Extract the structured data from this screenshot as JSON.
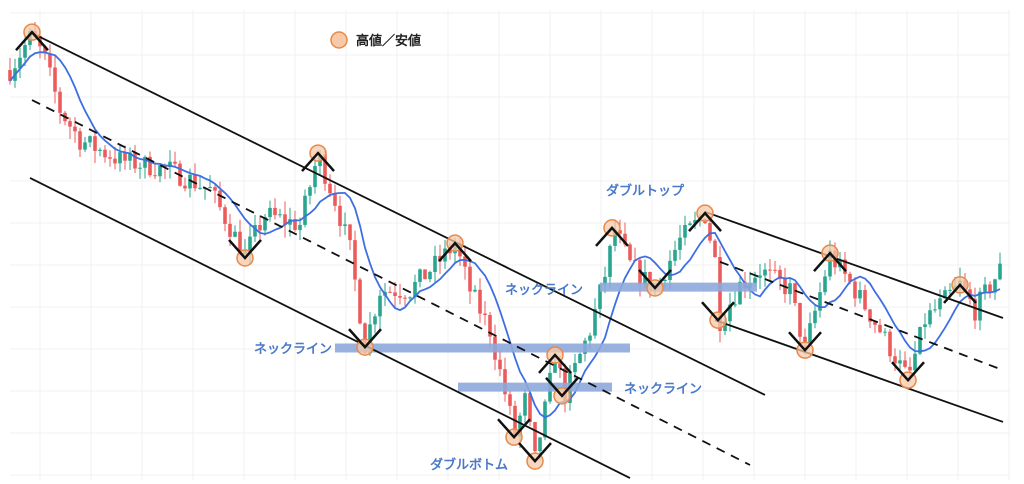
{
  "chart_data": {
    "type": "candlestick",
    "title": "",
    "xlabel": "",
    "ylabel": "",
    "xlim": [
      0,
      199
    ],
    "ylim": [
      0,
      100
    ],
    "grid": true,
    "legend": {
      "placement": "top-center",
      "label": "高値／安値",
      "marker_color": "#f6c9a8",
      "marker_edge": "#e8894a"
    },
    "colors": {
      "up": "#2aa58f",
      "down": "#ec5b5b",
      "moving_average": "#3d6fe3",
      "trendline": "#111111",
      "neckline": "#8ea9dc"
    },
    "price_path": [
      [
        0,
        90.8
      ],
      [
        4.4,
        98.9
      ],
      [
        7,
        93.1
      ],
      [
        10,
        81.6
      ],
      [
        14,
        74.7
      ],
      [
        22,
        70.1
      ],
      [
        32,
        67.8
      ],
      [
        40,
        63.2
      ],
      [
        47,
        48.3
      ],
      [
        51,
        57.5
      ],
      [
        58,
        55.2
      ],
      [
        61.6,
        71.3
      ],
      [
        65,
        60.9
      ],
      [
        68,
        49.4
      ],
      [
        71,
        27.6
      ],
      [
        74,
        40.2
      ],
      [
        80,
        40.2
      ],
      [
        86,
        47.1
      ],
      [
        89,
        50.6
      ],
      [
        92,
        40.2
      ],
      [
        96,
        31.0
      ],
      [
        101,
        6.9
      ],
      [
        103,
        14.9
      ],
      [
        105,
        1.1
      ],
      [
        107,
        12.6
      ],
      [
        109,
        25.3
      ],
      [
        111,
        16.1
      ],
      [
        116,
        31.0
      ],
      [
        119,
        43.7
      ],
      [
        121,
        54.0
      ],
      [
        124,
        46.0
      ],
      [
        129,
        40.2
      ],
      [
        134,
        51.7
      ],
      [
        139,
        57.5
      ],
      [
        141,
        47.1
      ],
      [
        142,
        33.3
      ],
      [
        146,
        41.4
      ],
      [
        150,
        44.8
      ],
      [
        156,
        40.2
      ],
      [
        159,
        26.4
      ],
      [
        164,
        48.3
      ],
      [
        169,
        40.2
      ],
      [
        174,
        31.0
      ],
      [
        179.6,
        19.5
      ],
      [
        183,
        33.3
      ],
      [
        190,
        41.4
      ],
      [
        193,
        35.6
      ],
      [
        198.6,
        46.0
      ]
    ],
    "trendlines": [
      {
        "style": "solid",
        "from": [
          4.4,
          99.3
        ],
        "to": [
          151,
          16.1
        ]
      },
      {
        "style": "solid",
        "from": [
          4,
          66.0
        ],
        "to": [
          124,
          -3.0
        ]
      },
      {
        "style": "dashed",
        "from": [
          4.4,
          83.9
        ],
        "to": [
          148,
          0
        ]
      },
      {
        "style": "solid",
        "from": [
          139,
          58.2
        ],
        "to": [
          198.6,
          33.8
        ]
      },
      {
        "style": "solid",
        "from": [
          141,
          33.3
        ],
        "to": [
          198.6,
          9.9
        ]
      },
      {
        "style": "dashed",
        "from": [
          142,
          46.7
        ],
        "to": [
          198.6,
          21.8
        ]
      }
    ],
    "necklines": [
      {
        "price": 26.9,
        "from": 65,
        "to": 124
      },
      {
        "price": 17.9,
        "from": 89.6,
        "to": 120.4
      },
      {
        "price": 40.9,
        "from": 118,
        "to": 149.4
      }
    ],
    "pivots": [
      {
        "kind": "high",
        "at": [
          4.4,
          99.5
        ]
      },
      {
        "kind": "high",
        "at": [
          61.6,
          71.7
        ]
      },
      {
        "kind": "low",
        "at": [
          47,
          47.6
        ]
      },
      {
        "kind": "high",
        "at": [
          89,
          51.0
        ]
      },
      {
        "kind": "low",
        "at": [
          71,
          27.1
        ]
      },
      {
        "kind": "high",
        "at": [
          109,
          25.3
        ]
      },
      {
        "kind": "low",
        "at": [
          110.4,
          15.9
        ]
      },
      {
        "kind": "low",
        "at": [
          100.8,
          6.4
        ]
      },
      {
        "kind": "low",
        "at": [
          105,
          0.9
        ]
      },
      {
        "kind": "high",
        "at": [
          120.4,
          54.5
        ]
      },
      {
        "kind": "low",
        "at": [
          129,
          40.7
        ]
      },
      {
        "kind": "high",
        "at": [
          139,
          57.9
        ]
      },
      {
        "kind": "low",
        "at": [
          141.6,
          33.3
        ]
      },
      {
        "kind": "high",
        "at": [
          164,
          48.7
        ]
      },
      {
        "kind": "low",
        "at": [
          159,
          26.4
        ]
      },
      {
        "kind": "low",
        "at": [
          179.6,
          19.5
        ]
      },
      {
        "kind": "high",
        "at": [
          190,
          41.4
        ]
      }
    ],
    "annotations": [
      {
        "text": "ダブルトップ",
        "at": [
          127,
          63.2
        ],
        "anchor": "middle"
      },
      {
        "text": "ネックライン",
        "at": [
          64.4,
          26.9
        ],
        "anchor": "end"
      },
      {
        "text": "ネックライン",
        "at": [
          99,
          40.5
        ],
        "anchor": "start"
      },
      {
        "text": "ネックライン",
        "at": [
          122.8,
          17.7
        ],
        "anchor": "start"
      },
      {
        "text": "ダブルボトム",
        "at": [
          84,
          0.2
        ],
        "anchor": "start"
      }
    ]
  }
}
